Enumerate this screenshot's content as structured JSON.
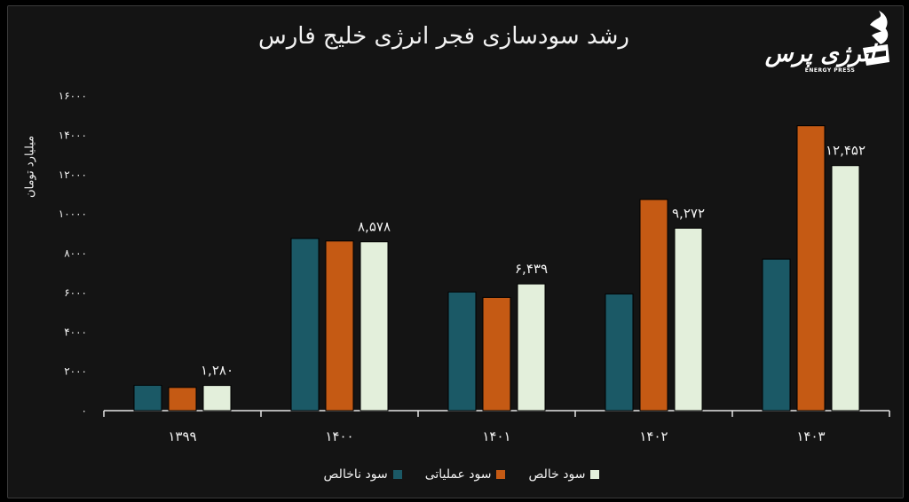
{
  "title": "رشد سودسازی فجر انرژی خلیج فارس",
  "logo": {
    "wordmark": "انرژی پرس",
    "tagline": "ENERGY PRESS"
  },
  "colors": {
    "background": "#141414",
    "text": "#f2f2f2",
    "series": [
      "#1b5966",
      "#c55a14",
      "#e3efdb"
    ]
  },
  "chart_data": {
    "type": "bar",
    "title": "رشد سودسازی فجر انرژی خلیج فارس",
    "xlabel": "",
    "ylabel": "میلیارد تومان",
    "categories": [
      "۱۳۹۹",
      "۱۴۰۰",
      "۱۴۰۱",
      "۱۴۰۲",
      "۱۴۰۳"
    ],
    "ylim": [
      0,
      16000
    ],
    "yticks": [
      0,
      2000,
      4000,
      6000,
      8000,
      10000,
      12000,
      14000,
      16000
    ],
    "ytick_labels": [
      "۰",
      "۲۰۰۰",
      "۴۰۰۰",
      "۶۰۰۰",
      "۸۰۰۰",
      "۱۰۰۰۰",
      "۱۲۰۰۰",
      "۱۴۰۰۰",
      "۱۶۰۰۰"
    ],
    "grid": false,
    "legend_position": "bottom",
    "series": [
      {
        "name": "سود ناخالص",
        "values": [
          1290,
          8750,
          6030,
          5930,
          7700
        ]
      },
      {
        "name": "سود عملیاتی",
        "values": [
          1180,
          8620,
          5750,
          10730,
          14480
        ]
      },
      {
        "name": "سود خالص",
        "values": [
          1280,
          8578,
          6439,
          9272,
          12452
        ],
        "labels": [
          "۱,۲۸۰",
          "۸,۵۷۸",
          "۶,۴۳۹",
          "۹,۲۷۲",
          "۱۲,۴۵۲"
        ]
      }
    ]
  }
}
